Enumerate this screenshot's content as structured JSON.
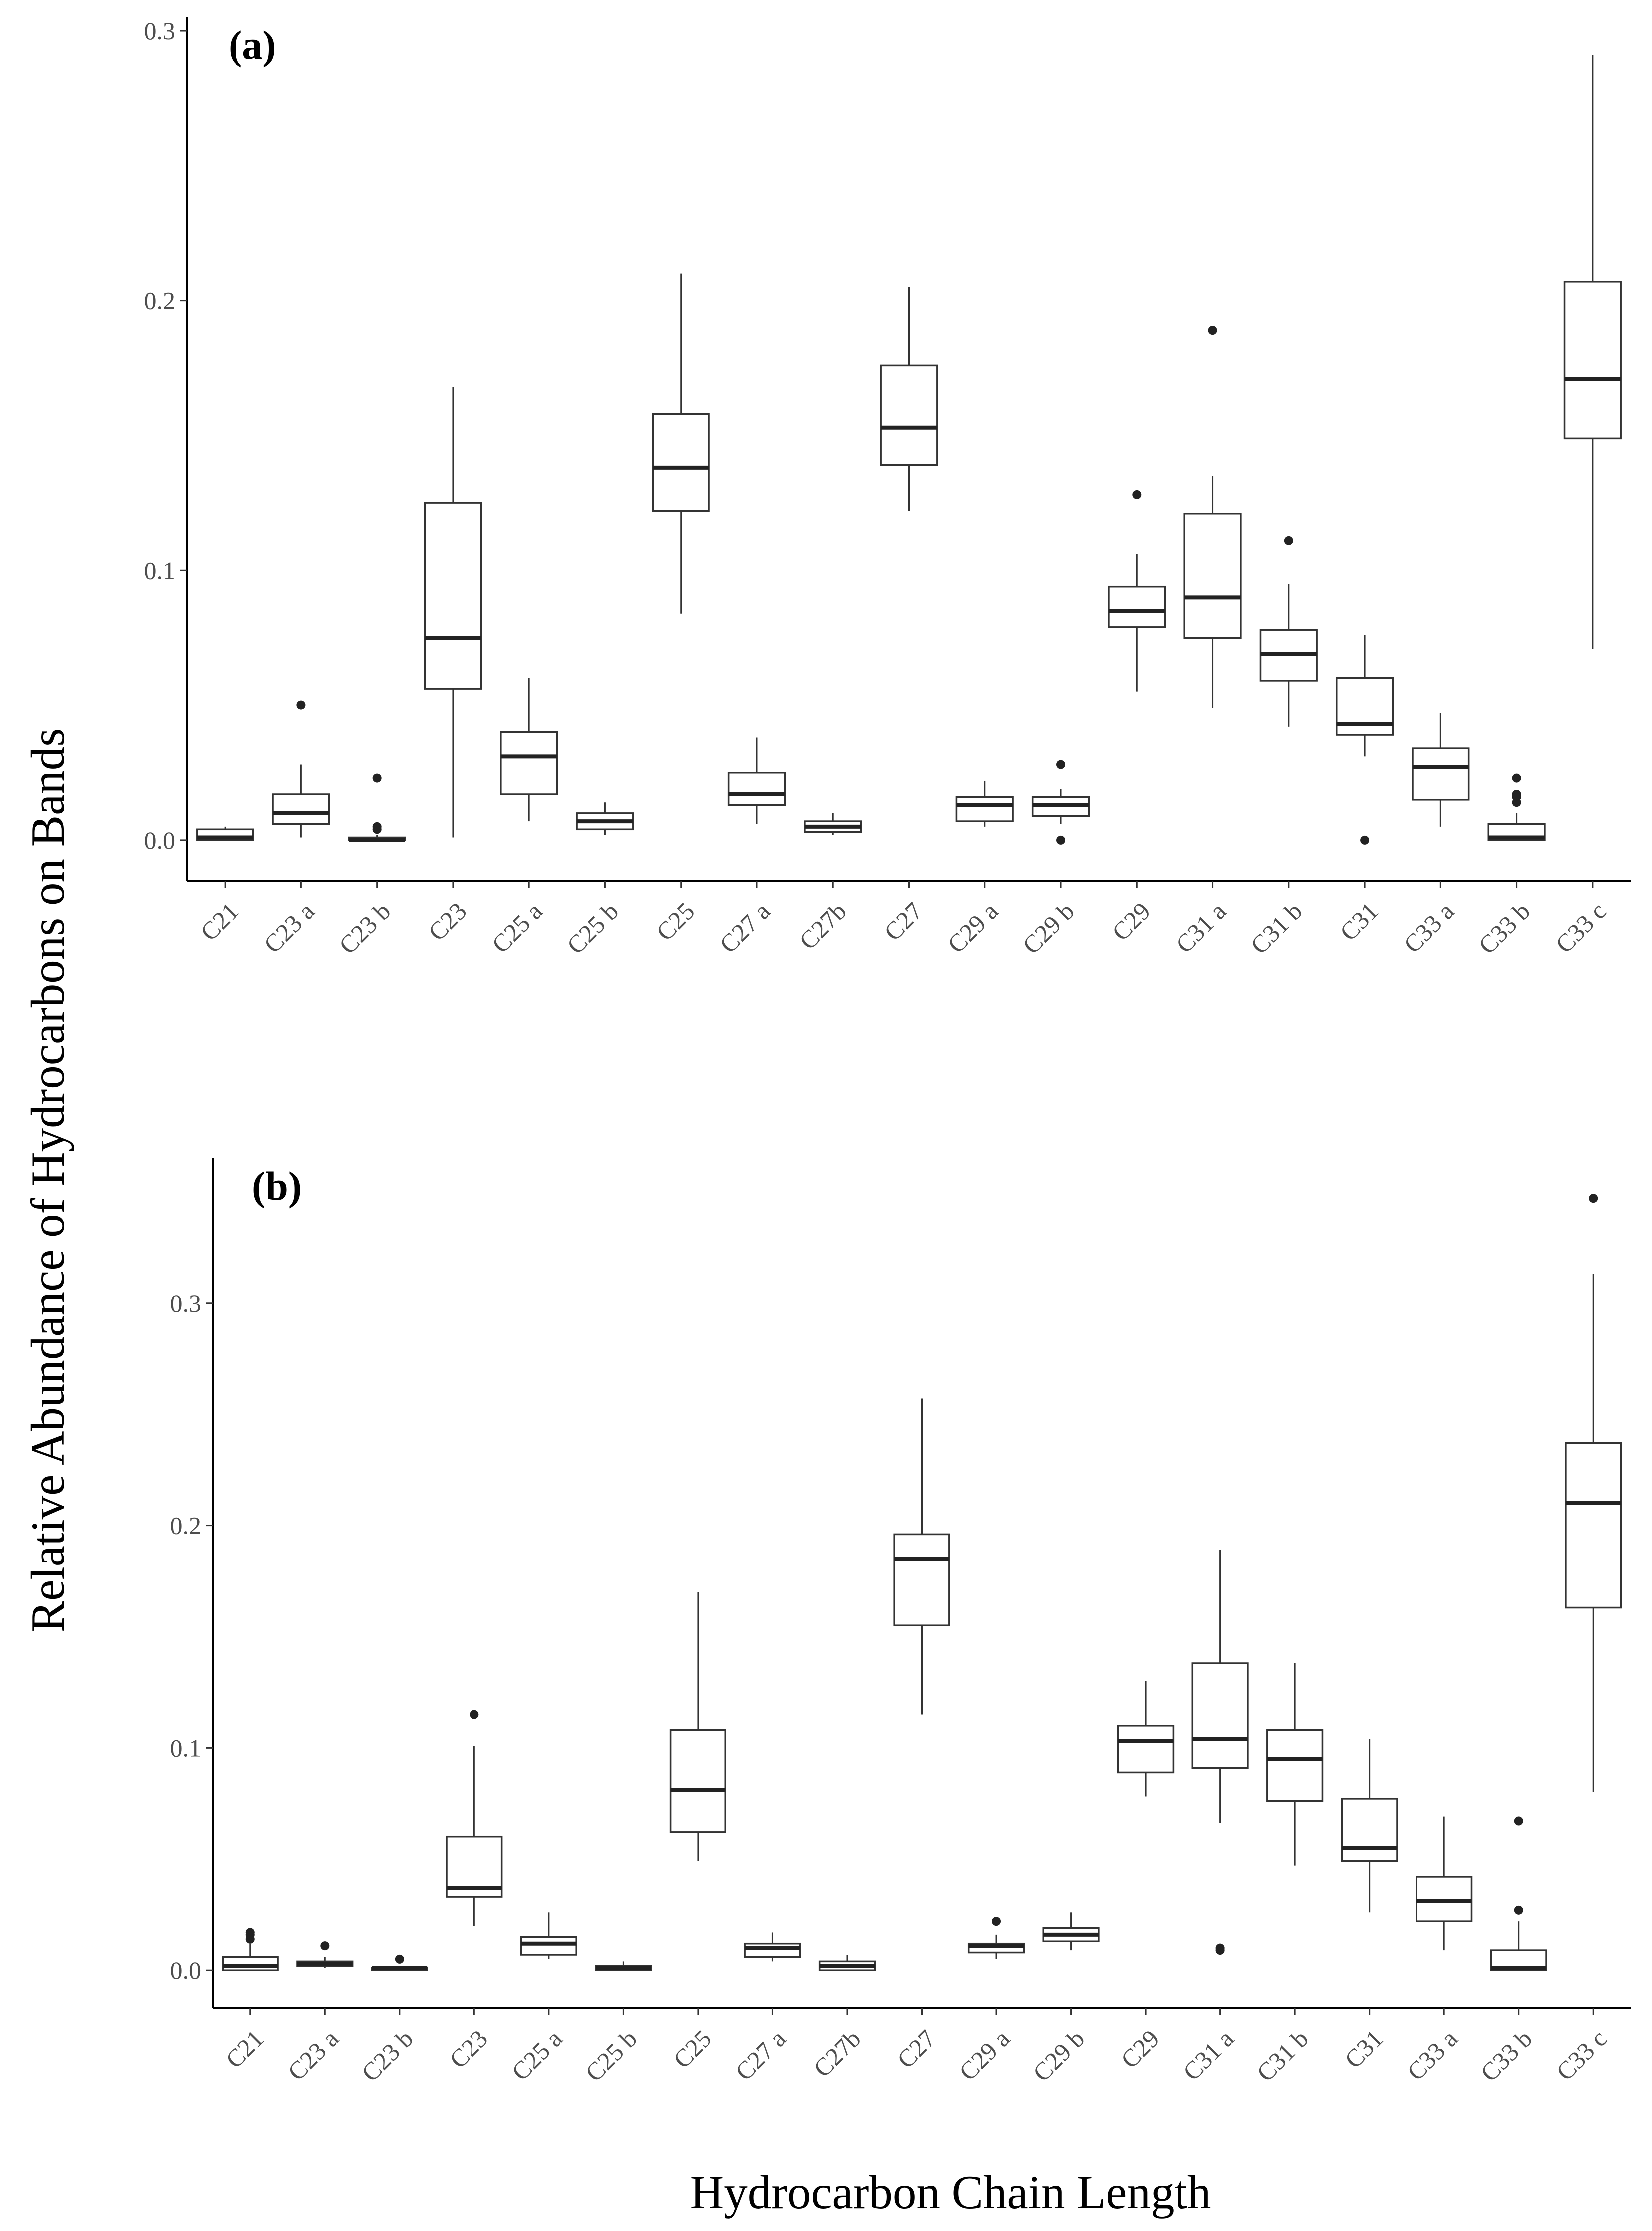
{
  "figure": {
    "ylabel": "Relative Abundance of Hydrocarbons on Bands",
    "xlabel": "Hydrocarbon Chain Length"
  },
  "chart_data": [
    {
      "type": "boxplot",
      "panel_label": "(a)",
      "ylim": [
        -0.015,
        0.305
      ],
      "yticks": [
        0.0,
        0.1,
        0.2,
        0.3
      ],
      "ytick_labels": [
        "0.0",
        "0.1",
        "0.2",
        "0.3"
      ],
      "categories": [
        "C21",
        "C23 a",
        "C23 b",
        "C23",
        "C25 a",
        "C25 b",
        "C25",
        "C27 a",
        "C27b",
        "C27",
        "C29 a",
        "C29 b",
        "C29",
        "C31 a",
        "C31 b",
        "C31",
        "C33 a",
        "C33 b",
        "C33 c"
      ],
      "boxes": [
        {
          "whisker_low": 0.0,
          "q1": 0.0,
          "median": 0.001,
          "q3": 0.004,
          "whisker_high": 0.005,
          "outliers": []
        },
        {
          "whisker_low": 0.001,
          "q1": 0.006,
          "median": 0.01,
          "q3": 0.017,
          "whisker_high": 0.028,
          "outliers": [
            0.05
          ]
        },
        {
          "whisker_low": 0.0,
          "q1": 0.0,
          "median": 0.0,
          "q3": 0.001,
          "whisker_high": 0.002,
          "outliers": [
            0.005,
            0.004,
            0.023
          ]
        },
        {
          "whisker_low": 0.001,
          "q1": 0.056,
          "median": 0.075,
          "q3": 0.125,
          "whisker_high": 0.168,
          "outliers": []
        },
        {
          "whisker_low": 0.007,
          "q1": 0.017,
          "median": 0.031,
          "q3": 0.04,
          "whisker_high": 0.06,
          "outliers": []
        },
        {
          "whisker_low": 0.002,
          "q1": 0.004,
          "median": 0.007,
          "q3": 0.01,
          "whisker_high": 0.014,
          "outliers": []
        },
        {
          "whisker_low": 0.084,
          "q1": 0.122,
          "median": 0.138,
          "q3": 0.158,
          "whisker_high": 0.21,
          "outliers": []
        },
        {
          "whisker_low": 0.006,
          "q1": 0.013,
          "median": 0.017,
          "q3": 0.025,
          "whisker_high": 0.038,
          "outliers": []
        },
        {
          "whisker_low": 0.002,
          "q1": 0.003,
          "median": 0.005,
          "q3": 0.007,
          "whisker_high": 0.01,
          "outliers": []
        },
        {
          "whisker_low": 0.122,
          "q1": 0.139,
          "median": 0.153,
          "q3": 0.176,
          "whisker_high": 0.205,
          "outliers": []
        },
        {
          "whisker_low": 0.005,
          "q1": 0.007,
          "median": 0.013,
          "q3": 0.016,
          "whisker_high": 0.022,
          "outliers": []
        },
        {
          "whisker_low": 0.006,
          "q1": 0.009,
          "median": 0.013,
          "q3": 0.016,
          "whisker_high": 0.019,
          "outliers": [
            0.0,
            0.028
          ]
        },
        {
          "whisker_low": 0.055,
          "q1": 0.079,
          "median": 0.085,
          "q3": 0.094,
          "whisker_high": 0.106,
          "outliers": [
            0.128
          ]
        },
        {
          "whisker_low": 0.049,
          "q1": 0.075,
          "median": 0.09,
          "q3": 0.121,
          "whisker_high": 0.135,
          "outliers": [
            0.189
          ]
        },
        {
          "whisker_low": 0.042,
          "q1": 0.059,
          "median": 0.069,
          "q3": 0.078,
          "whisker_high": 0.095,
          "outliers": [
            0.111
          ]
        },
        {
          "whisker_low": 0.031,
          "q1": 0.039,
          "median": 0.043,
          "q3": 0.06,
          "whisker_high": 0.076,
          "outliers": [
            0.0
          ]
        },
        {
          "whisker_low": 0.005,
          "q1": 0.015,
          "median": 0.027,
          "q3": 0.034,
          "whisker_high": 0.047,
          "outliers": []
        },
        {
          "whisker_low": 0.0,
          "q1": 0.0,
          "median": 0.001,
          "q3": 0.006,
          "whisker_high": 0.01,
          "outliers": [
            0.014,
            0.016,
            0.017,
            0.023
          ]
        },
        {
          "whisker_low": 0.071,
          "q1": 0.149,
          "median": 0.171,
          "q3": 0.207,
          "whisker_high": 0.291,
          "outliers": []
        }
      ]
    },
    {
      "type": "boxplot",
      "panel_label": "(b)",
      "ylim": [
        -0.017,
        0.365
      ],
      "yticks": [
        0.0,
        0.1,
        0.2,
        0.3
      ],
      "ytick_labels": [
        "0.0",
        "0.1",
        "0.2",
        "0.3"
      ],
      "categories": [
        "C21",
        "C23 a",
        "C23 b",
        "C23",
        "C25 a",
        "C25 b",
        "C25",
        "C27 a",
        "C27b",
        "C27",
        "C29 a",
        "C29 b",
        "C29",
        "C31 a",
        "C31 b",
        "C31",
        "C33 a",
        "C33 b",
        "C33 c"
      ],
      "boxes": [
        {
          "whisker_low": 0.0,
          "q1": 0.0,
          "median": 0.002,
          "q3": 0.006,
          "whisker_high": 0.012,
          "outliers": [
            0.014,
            0.016,
            0.017
          ]
        },
        {
          "whisker_low": 0.001,
          "q1": 0.002,
          "median": 0.003,
          "q3": 0.004,
          "whisker_high": 0.006,
          "outliers": [
            0.011
          ]
        },
        {
          "whisker_low": 0.0,
          "q1": 0.0,
          "median": 0.001,
          "q3": 0.001,
          "whisker_high": 0.002,
          "outliers": [
            0.005
          ]
        },
        {
          "whisker_low": 0.02,
          "q1": 0.033,
          "median": 0.037,
          "q3": 0.06,
          "whisker_high": 0.101,
          "outliers": [
            0.115
          ]
        },
        {
          "whisker_low": 0.005,
          "q1": 0.007,
          "median": 0.012,
          "q3": 0.015,
          "whisker_high": 0.026,
          "outliers": []
        },
        {
          "whisker_low": 0.0,
          "q1": 0.0,
          "median": 0.001,
          "q3": 0.002,
          "whisker_high": 0.004,
          "outliers": []
        },
        {
          "whisker_low": 0.049,
          "q1": 0.062,
          "median": 0.081,
          "q3": 0.108,
          "whisker_high": 0.17,
          "outliers": []
        },
        {
          "whisker_low": 0.004,
          "q1": 0.006,
          "median": 0.01,
          "q3": 0.012,
          "whisker_high": 0.017,
          "outliers": []
        },
        {
          "whisker_low": 0.0,
          "q1": 0.0,
          "median": 0.002,
          "q3": 0.004,
          "whisker_high": 0.007,
          "outliers": []
        },
        {
          "whisker_low": 0.115,
          "q1": 0.155,
          "median": 0.185,
          "q3": 0.196,
          "whisker_high": 0.257,
          "outliers": []
        },
        {
          "whisker_low": 0.005,
          "q1": 0.008,
          "median": 0.011,
          "q3": 0.012,
          "whisker_high": 0.016,
          "outliers": [
            0.022
          ]
        },
        {
          "whisker_low": 0.009,
          "q1": 0.013,
          "median": 0.016,
          "q3": 0.019,
          "whisker_high": 0.026,
          "outliers": []
        },
        {
          "whisker_low": 0.078,
          "q1": 0.089,
          "median": 0.103,
          "q3": 0.11,
          "whisker_high": 0.13,
          "outliers": []
        },
        {
          "whisker_low": 0.066,
          "q1": 0.091,
          "median": 0.104,
          "q3": 0.138,
          "whisker_high": 0.189,
          "outliers": [
            0.009,
            0.01
          ]
        },
        {
          "whisker_low": 0.047,
          "q1": 0.076,
          "median": 0.095,
          "q3": 0.108,
          "whisker_high": 0.138,
          "outliers": []
        },
        {
          "whisker_low": 0.026,
          "q1": 0.049,
          "median": 0.055,
          "q3": 0.077,
          "whisker_high": 0.104,
          "outliers": []
        },
        {
          "whisker_low": 0.009,
          "q1": 0.022,
          "median": 0.031,
          "q3": 0.042,
          "whisker_high": 0.069,
          "outliers": []
        },
        {
          "whisker_low": 0.0,
          "q1": 0.0,
          "median": 0.001,
          "q3": 0.009,
          "whisker_high": 0.022,
          "outliers": [
            0.027,
            0.067
          ]
        },
        {
          "whisker_low": 0.08,
          "q1": 0.163,
          "median": 0.21,
          "q3": 0.237,
          "whisker_high": 0.313,
          "outliers": [
            0.347
          ]
        }
      ]
    }
  ]
}
